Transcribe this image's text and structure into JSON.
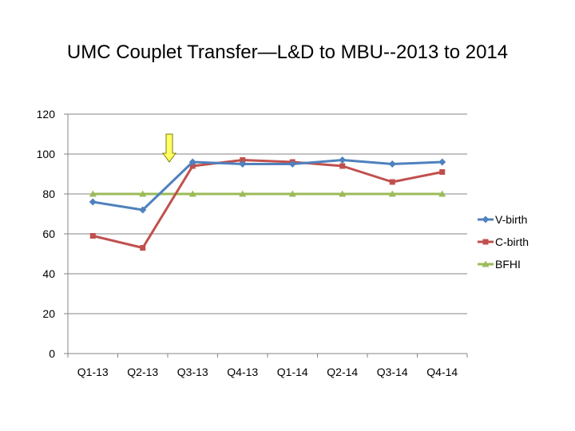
{
  "chart_data": {
    "type": "line",
    "title": "UMC Couplet Transfer—L&D to MBU--2013 to 2014",
    "categories": [
      "Q1-13",
      "Q2-13",
      "Q3-13",
      "Q4-13",
      "Q1-14",
      "Q2-14",
      "Q3-14",
      "Q4-14"
    ],
    "ylim": [
      0,
      120
    ],
    "yticks": [
      0,
      20,
      40,
      60,
      80,
      100,
      120
    ],
    "grid": true,
    "legend_position": "right",
    "series": [
      {
        "name": "V-birth",
        "color": "#4F81BD",
        "marker": "diamond",
        "values": [
          76,
          72,
          96,
          95,
          95,
          97,
          95,
          96
        ]
      },
      {
        "name": "C-birth",
        "color": "#C0504D",
        "marker": "square",
        "values": [
          59,
          53,
          94,
          97,
          96,
          94,
          86,
          91
        ]
      },
      {
        "name": "BFHI",
        "color": "#9BBB59",
        "marker": "triangle",
        "values": [
          80,
          80,
          80,
          80,
          80,
          80,
          80,
          80
        ]
      }
    ],
    "annotation": {
      "type": "arrow",
      "category": "Q2-13",
      "color": "#FFFF66"
    }
  }
}
